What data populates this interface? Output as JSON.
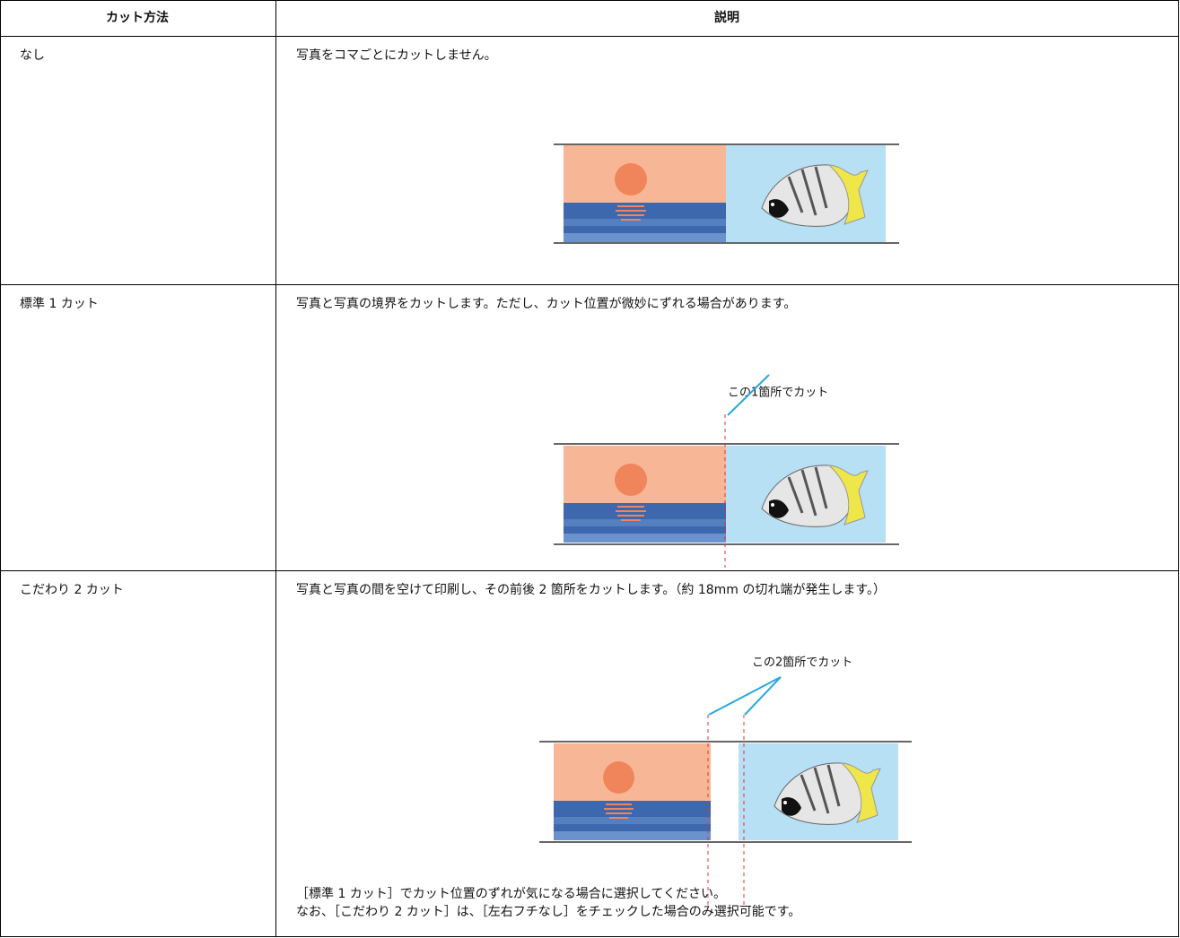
{
  "table": {
    "columns": [
      "カット方法",
      "説明"
    ],
    "rows": [
      {
        "method": "なし",
        "description": "写真をコマごとにカットしません。"
      },
      {
        "method": "標準 1 カット",
        "description": "写真と写真の境界をカットします。ただし、カット位置が微妙にずれる場合があります。",
        "callout": "この1箇所でカット"
      },
      {
        "method": "こだわり 2 カット",
        "description": "写真と写真の間を空けて印刷し、その前後 2 箇所をカットします。（約 18mm の切れ端が発生します。）",
        "callout": "この2箇所でカット",
        "notes": [
          "［標準 1 カット］でカット位置のずれが気になる場合に選択してください。",
          "なお、［こだわり 2 カット］は、［左右フチなし］をチェックした場合のみ選択可能です。"
        ]
      }
    ]
  }
}
